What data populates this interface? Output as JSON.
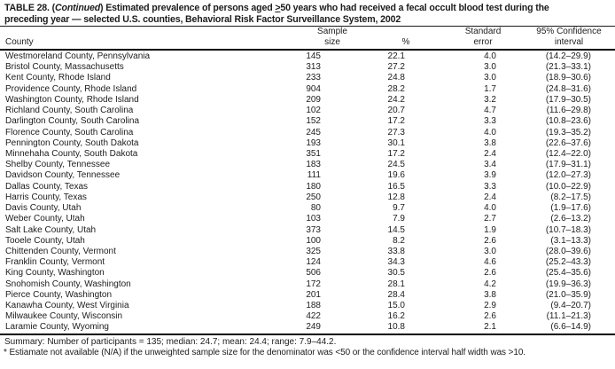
{
  "title": {
    "l1a": "TABLE 28. (",
    "l1_continued": "Continued",
    "l1b": ") Estimated prevalence of persons aged ",
    "l1_geq": ">",
    "l1c": "50 years who had received a fecal occult blood test during the",
    "line2": "preceding year — selected U.S. counties, Behavioral Risk Factor Surveillance System, 2002"
  },
  "columns": {
    "county": "County",
    "sample_line1": "Sample",
    "sample_line2": "size",
    "percent": "%",
    "se_line1": "Standard",
    "se_line2": "error",
    "ci_line1": "95% Confidence",
    "ci_line2": "interval"
  },
  "rows": [
    {
      "county": "Westmoreland County, Pennsylvania",
      "sample": "145",
      "pct": "22.1",
      "se": "4.0",
      "ci": "(14.2–29.9)"
    },
    {
      "county": "Bristol County, Massachusetts",
      "sample": "313",
      "pct": "27.2",
      "se": "3.0",
      "ci": "(21.3–33.1)"
    },
    {
      "county": "Kent County, Rhode Island",
      "sample": "233",
      "pct": "24.8",
      "se": "3.0",
      "ci": "(18.9–30.6)"
    },
    {
      "county": "Providence County, Rhode Island",
      "sample": "904",
      "pct": "28.2",
      "se": "1.7",
      "ci": "(24.8–31.6)"
    },
    {
      "county": "Washington County, Rhode Island",
      "sample": "209",
      "pct": "24.2",
      "se": "3.2",
      "ci": "(17.9–30.5)"
    },
    {
      "county": "Richland County, South Carolina",
      "sample": "102",
      "pct": "20.7",
      "se": "4.7",
      "ci": "(11.6–29.8)"
    },
    {
      "county": "Darlington County, South Carolina",
      "sample": "152",
      "pct": "17.2",
      "se": "3.3",
      "ci": "(10.8–23.6)"
    },
    {
      "county": "Florence County, South Carolina",
      "sample": "245",
      "pct": "27.3",
      "se": "4.0",
      "ci": "(19.3–35.2)"
    },
    {
      "county": "Pennington County, South Dakota",
      "sample": "193",
      "pct": "30.1",
      "se": "3.8",
      "ci": "(22.6–37.6)"
    },
    {
      "county": "Minnehaha County, South Dakota",
      "sample": "351",
      "pct": "17.2",
      "se": "2.4",
      "ci": "(12.4–22.0)"
    },
    {
      "county": "Shelby County, Tennessee",
      "sample": "183",
      "pct": "24.5",
      "se": "3.4",
      "ci": "(17.9–31.1)"
    },
    {
      "county": "Davidson County, Tennessee",
      "sample": "111",
      "pct": "19.6",
      "se": "3.9",
      "ci": "(12.0–27.3)"
    },
    {
      "county": "Dallas County, Texas",
      "sample": "180",
      "pct": "16.5",
      "se": "3.3",
      "ci": "(10.0–22.9)"
    },
    {
      "county": "Harris County, Texas",
      "sample": "250",
      "pct": "12.8",
      "se": "2.4",
      "ci": "(8.2–17.5)"
    },
    {
      "county": "Davis County, Utah",
      "sample": "80",
      "pct": "9.7",
      "se": "4.0",
      "ci": "(1.9–17.6)"
    },
    {
      "county": "Weber County, Utah",
      "sample": "103",
      "pct": "7.9",
      "se": "2.7",
      "ci": "(2.6–13.2)"
    },
    {
      "county": "Salt Lake County, Utah",
      "sample": "373",
      "pct": "14.5",
      "se": "1.9",
      "ci": "(10.7–18.3)"
    },
    {
      "county": "Tooele County, Utah",
      "sample": "100",
      "pct": "8.2",
      "se": "2.6",
      "ci": "(3.1–13.3)"
    },
    {
      "county": "Chittenden County, Vermont",
      "sample": "325",
      "pct": "33.8",
      "se": "3.0",
      "ci": "(28.0–39.6)"
    },
    {
      "county": "Franklin County, Vermont",
      "sample": "124",
      "pct": "34.3",
      "se": "4.6",
      "ci": "(25.2–43.3)"
    },
    {
      "county": "King County, Washington",
      "sample": "506",
      "pct": "30.5",
      "se": "2.6",
      "ci": "(25.4–35.6)"
    },
    {
      "county": "Snohomish County, Washington",
      "sample": "172",
      "pct": "28.1",
      "se": "4.2",
      "ci": "(19.9–36.3)"
    },
    {
      "county": "Pierce County, Washington",
      "sample": "201",
      "pct": "28.4",
      "se": "3.8",
      "ci": "(21.0–35.9)"
    },
    {
      "county": "Kanawha County, West Virginia",
      "sample": "188",
      "pct": "15.0",
      "se": "2.9",
      "ci": "(9.4–20.7)"
    },
    {
      "county": "Milwaukee County, Wisconsin",
      "sample": "422",
      "pct": "16.2",
      "se": "2.6",
      "ci": "(11.1–21.3)"
    },
    {
      "county": "Laramie County, Wyoming",
      "sample": "249",
      "pct": "10.8",
      "se": "2.1",
      "ci": "(6.6–14.9)"
    }
  ],
  "summary": "Summary: Number of participants = 135; median: 24.7; mean: 24.4; range: 7.9–44.2.",
  "footnote": "* Estiamate not available (N/A) if the unweighted sample size for the denominator was <50 or the confidence interval half width was >10."
}
